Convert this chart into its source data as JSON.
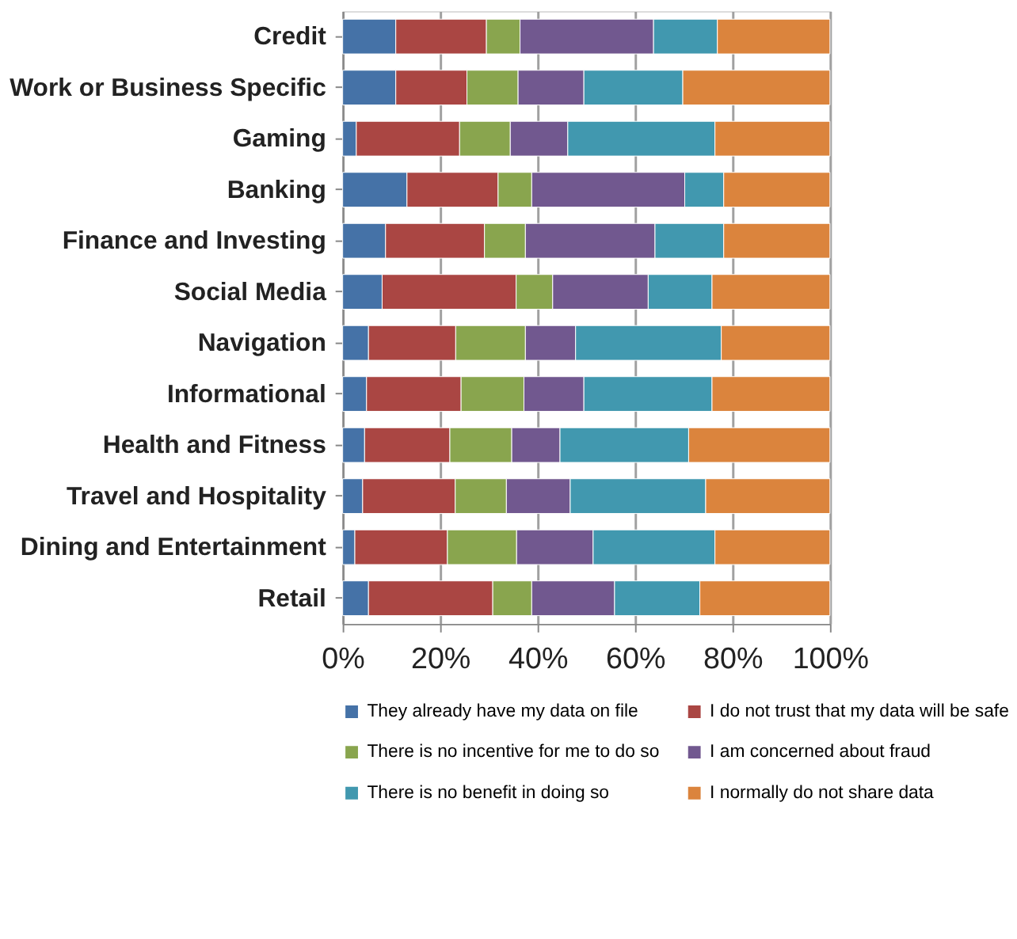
{
  "chart_data": {
    "type": "bar",
    "orientation": "horizontal",
    "stacked": true,
    "categories": [
      "Credit",
      "Work or Business Specific",
      "Gaming",
      "Banking",
      "Finance and Investing",
      "Social Media",
      "Navigation",
      "Informational",
      "Health and Fitness",
      "Travel and Hospitality",
      "Dining and Entertainment",
      "Retail"
    ],
    "series": [
      {
        "name": "They already have my data on file",
        "color": "#4572a7",
        "values": [
          10.9,
          10.9,
          2.8,
          13.2,
          8.8,
          8.1,
          5.3,
          4.9,
          4.5,
          4.1,
          2.5,
          5.3
        ]
      },
      {
        "name": "I do not trust that my data will be safe",
        "color": "#aa4643",
        "values": [
          18.6,
          14.6,
          21.2,
          18.7,
          20.3,
          27.5,
          17.9,
          19.4,
          17.5,
          19.0,
          19.0,
          25.5
        ]
      },
      {
        "name": "There is no incentive for me to do so",
        "color": "#89a54e",
        "values": [
          6.9,
          10.5,
          10.4,
          6.9,
          8.4,
          7.5,
          14.3,
          12.9,
          12.7,
          10.5,
          14.2,
          8.0
        ]
      },
      {
        "name": "I am concerned about fraud",
        "color": "#71588f",
        "values": [
          27.4,
          13.5,
          11.8,
          31.4,
          26.6,
          19.6,
          10.3,
          12.3,
          9.9,
          13.1,
          15.7,
          17.0
        ]
      },
      {
        "name": "There is no benefit in doing so",
        "color": "#4198af",
        "values": [
          13.1,
          20.3,
          30.2,
          8.0,
          14.1,
          13.1,
          29.9,
          26.3,
          26.4,
          27.8,
          25.0,
          17.5
        ]
      },
      {
        "name": "I normally do not share data",
        "color": "#db843d",
        "values": [
          23.1,
          30.2,
          23.6,
          21.8,
          21.8,
          24.2,
          22.3,
          24.2,
          29.0,
          25.5,
          23.6,
          26.7
        ]
      }
    ],
    "xlim": [
      0,
      100
    ],
    "xticks": [
      {
        "value": 0,
        "label": "0%"
      },
      {
        "value": 20,
        "label": "20%"
      },
      {
        "value": 40,
        "label": "40%"
      },
      {
        "value": 60,
        "label": "60%"
      },
      {
        "value": 80,
        "label": "80%"
      },
      {
        "value": 100,
        "label": "100%"
      }
    ],
    "grid": "x",
    "legend": "bottom"
  }
}
